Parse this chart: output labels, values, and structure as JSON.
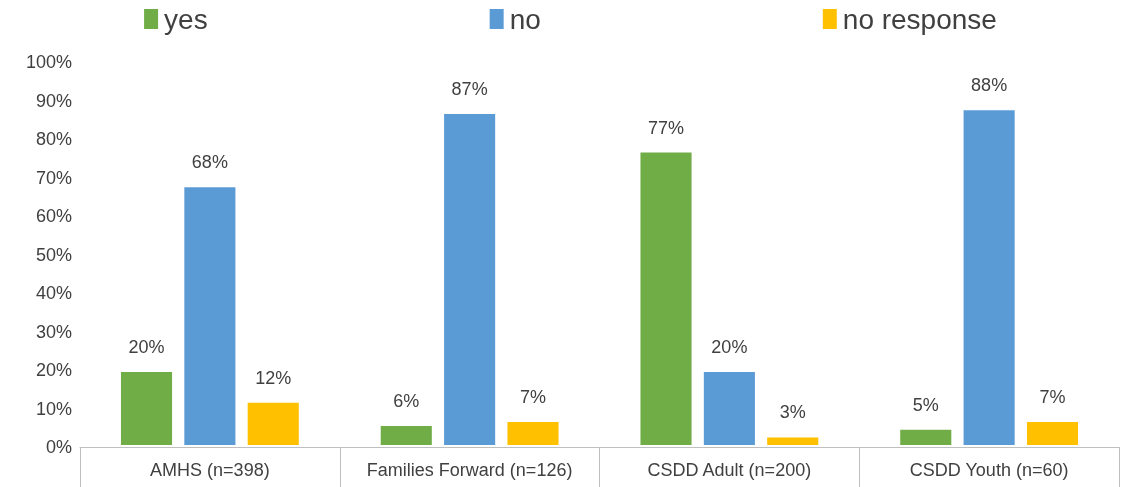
{
  "chart_data": {
    "type": "bar",
    "categories": [
      "AMHS (n=398)",
      "Families Forward (n=126)",
      "CSDD Adult (n=200)",
      "CSDD Youth (n=60)"
    ],
    "series": [
      {
        "name": "yes",
        "color": "#70ad47",
        "values": [
          20,
          6,
          77,
          5
        ],
        "value_labels": [
          "20%",
          "6%",
          "77%",
          "5%"
        ]
      },
      {
        "name": "no",
        "color": "#5b9bd5",
        "values": [
          68,
          87,
          20,
          88
        ],
        "value_labels": [
          "68%",
          "87%",
          "20%",
          "88%"
        ]
      },
      {
        "name": "no response",
        "color": "#ffc000",
        "values": [
          12,
          7,
          3,
          7
        ],
        "value_labels": [
          "12%",
          "7%",
          "3%",
          "7%"
        ]
      }
    ],
    "ylim": [
      0,
      100
    ],
    "yticks": [
      {
        "value": 0,
        "label": "0%"
      },
      {
        "value": 10,
        "label": "10%"
      },
      {
        "value": 20,
        "label": "20%"
      },
      {
        "value": 30,
        "label": "30%"
      },
      {
        "value": 40,
        "label": "40%"
      },
      {
        "value": 50,
        "label": "50%"
      },
      {
        "value": 60,
        "label": "60%"
      },
      {
        "value": 70,
        "label": "70%"
      },
      {
        "value": 80,
        "label": "80%"
      },
      {
        "value": 90,
        "label": "90%"
      },
      {
        "value": 100,
        "label": "100%"
      }
    ],
    "grid": false,
    "legend": "top"
  }
}
